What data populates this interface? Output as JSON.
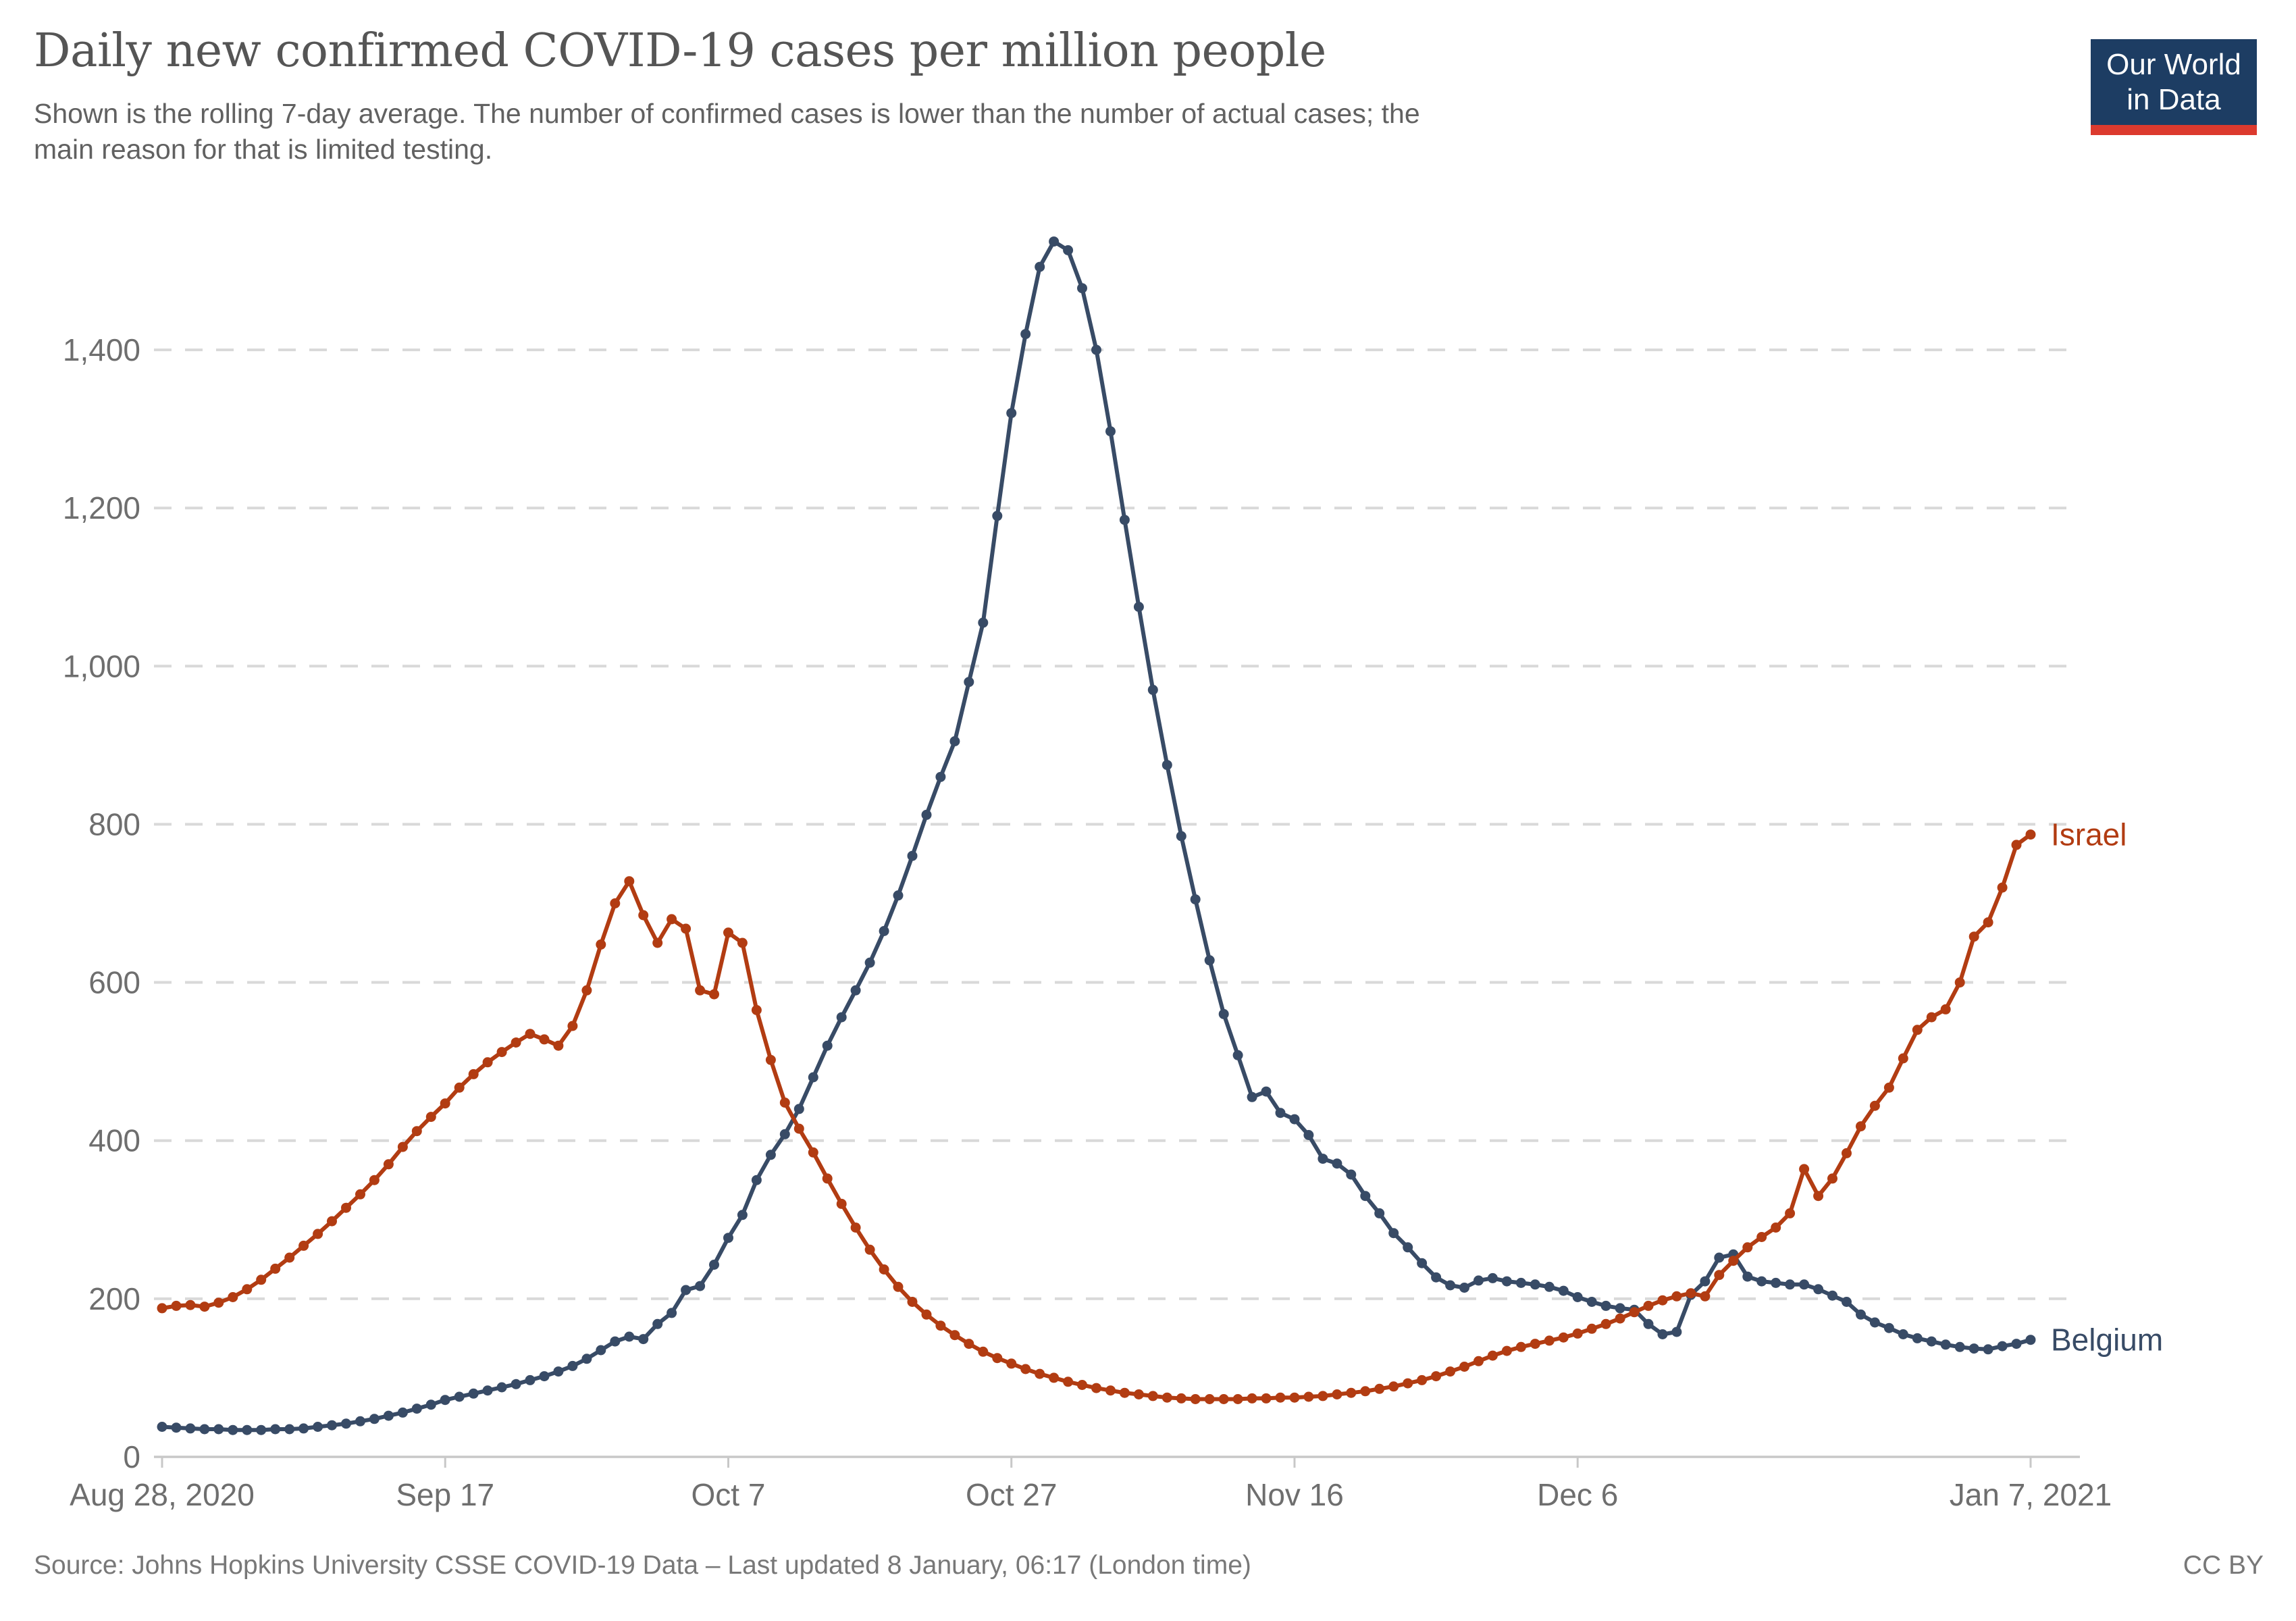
{
  "header": {
    "title": "Daily new confirmed COVID-19 cases per million people",
    "subtitle_line1": "Shown is the rolling 7-day average. The number of confirmed cases is lower than the number of actual cases; the",
    "subtitle_line2": "main reason for that is limited testing.",
    "logo": {
      "line1": "Our World",
      "line2": "in Data"
    }
  },
  "footer": {
    "source": "Source: Johns Hopkins University CSSE COVID-19 Data – Last updated 8 January, 06:17 (London time)",
    "license": "CC BY"
  },
  "colors": {
    "israel": "#b23c12",
    "belgium": "#384b66",
    "gridline": "#d9d9d9",
    "axis_line": "#c8c8c8",
    "tick_label": "#6e6e6e",
    "logo_bg": "#1d3d63",
    "logo_stripe": "#dc3a2e"
  },
  "chart_data": {
    "type": "line",
    "title": "Daily new confirmed COVID-19 cases per million people",
    "subtitle": "Shown is the rolling 7-day average. The number of confirmed cases is lower than the number of actual cases; the main reason for that is limited testing.",
    "xlabel": "",
    "ylabel": "",
    "grid": "horizontal dashed",
    "legend_position": "end-of-line labels",
    "x_range_days": 132,
    "x_ticks": [
      {
        "label": "Aug 28, 2020",
        "day": 0
      },
      {
        "label": "Sep 17",
        "day": 20
      },
      {
        "label": "Oct 7",
        "day": 40
      },
      {
        "label": "Oct 27",
        "day": 60
      },
      {
        "label": "Nov 16",
        "day": 80
      },
      {
        "label": "Dec 6",
        "day": 100
      },
      {
        "label": "Jan 7, 2021",
        "day": 132
      }
    ],
    "y_ticks": [
      {
        "label": "0",
        "value": 0
      },
      {
        "label": "200",
        "value": 200
      },
      {
        "label": "400",
        "value": 400
      },
      {
        "label": "600",
        "value": 600
      },
      {
        "label": "800",
        "value": 800
      },
      {
        "label": "1,000",
        "value": 1000
      },
      {
        "label": "1,200",
        "value": 1200
      },
      {
        "label": "1,400",
        "value": 1400
      }
    ],
    "ylim": [
      0,
      1560
    ],
    "series": [
      {
        "name": "Belgium",
        "color": "#384b66",
        "values": [
          38,
          37,
          36,
          35,
          35,
          34,
          34,
          34,
          35,
          35,
          36,
          38,
          40,
          42,
          45,
          48,
          52,
          56,
          61,
          66,
          72,
          76,
          80,
          84,
          88,
          92,
          97,
          102,
          108,
          115,
          124,
          135,
          146,
          152,
          149,
          168,
          182,
          211,
          216,
          243,
          277,
          306,
          350,
          382,
          408,
          440,
          480,
          520,
          556,
          590,
          625,
          665,
          710,
          760,
          812,
          860,
          905,
          980,
          1055,
          1190,
          1320,
          1420,
          1505,
          1537,
          1526,
          1478,
          1400,
          1297,
          1185,
          1075,
          970,
          875,
          785,
          705,
          628,
          560,
          508,
          455,
          462,
          435,
          427,
          407,
          377,
          371,
          357,
          330,
          308,
          283,
          265,
          245,
          227,
          217,
          214,
          223,
          226,
          222,
          220,
          218,
          215,
          210,
          202,
          196,
          191,
          188,
          186,
          168,
          155,
          158,
          205,
          222,
          252,
          256,
          228,
          222,
          220,
          218,
          218,
          212,
          204,
          196,
          180,
          170,
          163,
          155,
          150,
          146,
          142,
          139,
          137,
          136,
          140,
          143,
          148
        ]
      },
      {
        "name": "Israel",
        "color": "#b23c12",
        "values": [
          188,
          191,
          192,
          190,
          195,
          202,
          212,
          224,
          238,
          252,
          267,
          282,
          298,
          315,
          332,
          350,
          370,
          392,
          412,
          430,
          447,
          467,
          484,
          499,
          512,
          524,
          535,
          528,
          520,
          545,
          590,
          648,
          700,
          728,
          685,
          650,
          680,
          668,
          590,
          585,
          663,
          650,
          565,
          502,
          448,
          415,
          385,
          352,
          320,
          290,
          262,
          237,
          215,
          196,
          180,
          166,
          154,
          143,
          133,
          125,
          118,
          111,
          105,
          100,
          95,
          91,
          87,
          84,
          81,
          79,
          77,
          75,
          74,
          73,
          73,
          73,
          73,
          74,
          74,
          75,
          75,
          76,
          77,
          79,
          81,
          83,
          86,
          89,
          93,
          97,
          102,
          108,
          114,
          121,
          128,
          134,
          139,
          143,
          147,
          151,
          156,
          162,
          168,
          175,
          183,
          191,
          198,
          203,
          207,
          203,
          230,
          248,
          265,
          278,
          290,
          308,
          364,
          330,
          352,
          384,
          418,
          444,
          467,
          504,
          540,
          556,
          566,
          600,
          658,
          676,
          720,
          774,
          787
        ]
      }
    ]
  }
}
